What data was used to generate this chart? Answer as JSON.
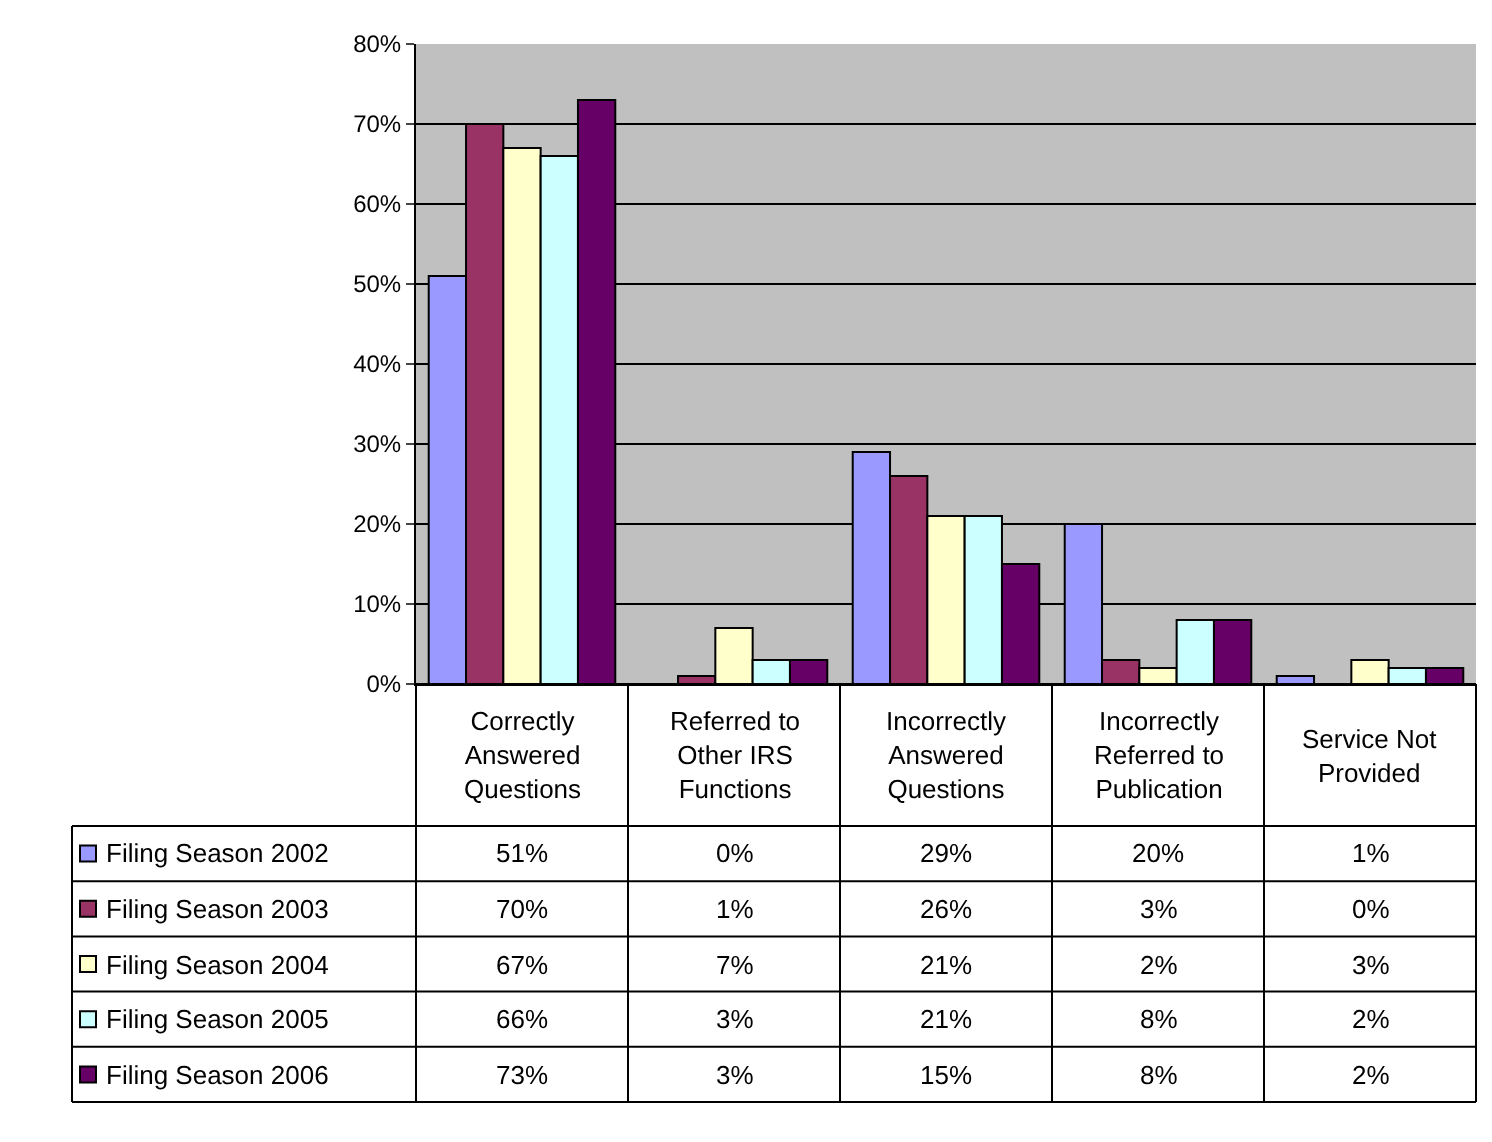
{
  "chart_data": {
    "type": "bar",
    "categories": [
      "Correctly Answered Questions",
      "Referred to Other IRS Functions",
      "Incorrectly Answered Questions",
      "Incorrectly Referred to Publication",
      "Service Not Provided"
    ],
    "series": [
      {
        "name": "Filing Season 2002",
        "color": "#9999ff",
        "values": [
          51,
          0,
          29,
          20,
          1
        ],
        "value_labels": [
          "51%",
          "0%",
          "29%",
          "20%",
          "1%"
        ]
      },
      {
        "name": "Filing Season 2003",
        "color": "#993366",
        "values": [
          70,
          1,
          26,
          3,
          0
        ],
        "value_labels": [
          "70%",
          "1%",
          "26%",
          "3%",
          "0%"
        ]
      },
      {
        "name": "Filing Season 2004",
        "color": "#ffffcc",
        "values": [
          67,
          7,
          21,
          2,
          3
        ],
        "value_labels": [
          "67%",
          "7%",
          "21%",
          "2%",
          "3%"
        ]
      },
      {
        "name": "Filing Season 2005",
        "color": "#ccffff",
        "values": [
          66,
          3,
          21,
          8,
          2
        ],
        "value_labels": [
          "66%",
          "3%",
          "21%",
          "8%",
          "2%"
        ]
      },
      {
        "name": "Filing Season 2006",
        "color": "#660066",
        "values": [
          73,
          3,
          15,
          8,
          2
        ],
        "value_labels": [
          "73%",
          "3%",
          "15%",
          "8%",
          "2%"
        ]
      }
    ],
    "ylim": [
      0,
      80
    ],
    "yticks": [
      {
        "value": 0,
        "label": "0%"
      },
      {
        "value": 10,
        "label": "10%"
      },
      {
        "value": 20,
        "label": "20%"
      },
      {
        "value": 30,
        "label": "30%"
      },
      {
        "value": 40,
        "label": "40%"
      },
      {
        "value": 50,
        "label": "50%"
      },
      {
        "value": 60,
        "label": "60%"
      },
      {
        "value": 70,
        "label": "70%"
      },
      {
        "value": 80,
        "label": "80%"
      }
    ],
    "grid": "y",
    "legend": "bottom"
  }
}
